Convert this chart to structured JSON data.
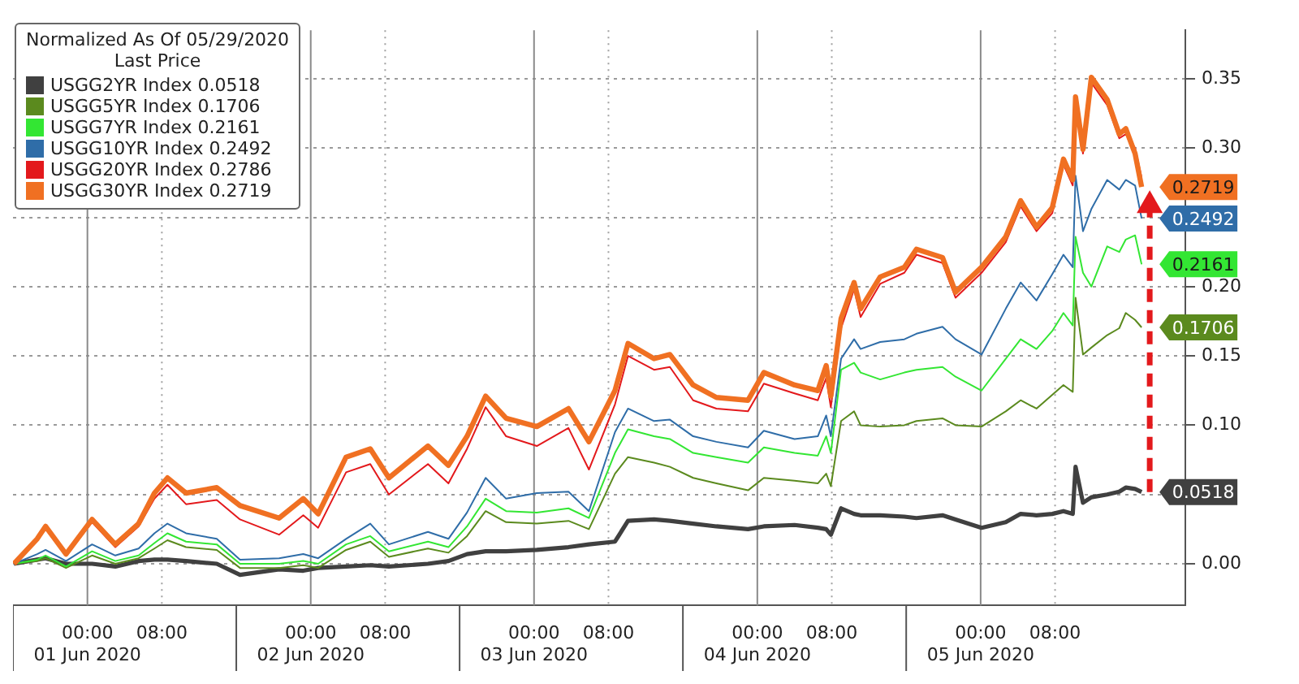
{
  "chart_data": {
    "type": "line",
    "legend_title": "Normalized As Of 05/29/2020\nLast Price",
    "x": [
      "2020-05-31T16:06",
      "2020-05-31T18:36",
      "2020-05-31T19:30",
      "2020-05-31T21:42",
      "2020-06-01T00:30",
      "2020-06-01T03:00",
      "2020-06-01T05:30",
      "2020-06-01T07:12",
      "2020-06-01T08:36",
      "2020-06-01T10:36",
      "2020-06-01T13:54",
      "2020-06-01T16:24",
      "2020-06-01T20:36",
      "2020-06-01T23:12",
      "2020-06-02T00:48",
      "2020-06-02T03:48",
      "2020-06-02T06:24",
      "2020-06-02T08:24",
      "2020-06-02T12:36",
      "2020-06-02T14:48",
      "2020-06-02T16:48",
      "2020-06-02T18:48",
      "2020-06-02T21:00",
      "2020-06-03T00:18",
      "2020-06-03T03:42",
      "2020-06-03T05:54",
      "2020-06-03T08:42",
      "2020-06-03T10:06",
      "2020-06-03T12:54",
      "2020-06-03T14:36",
      "2020-06-03T17:06",
      "2020-06-03T19:36",
      "2020-06-03T23:00",
      "2020-06-04T00:42",
      "2020-06-04T04:00",
      "2020-06-04T06:30",
      "2020-06-04T07:24",
      "2020-06-04T07:54",
      "2020-06-04T09:00",
      "2020-06-04T10:24",
      "2020-06-04T11:06",
      "2020-06-04T13:12",
      "2020-06-04T15:48",
      "2020-06-04T17:06",
      "2020-06-04T19:54",
      "2020-06-04T21:18",
      "2020-06-05T00:06",
      "2020-06-05T02:42",
      "2020-06-05T04:18",
      "2020-06-05T06:00",
      "2020-06-05T07:42",
      "2020-06-05T08:54",
      "2020-06-05T09:54",
      "2020-06-05T10:12",
      "2020-06-05T11:00",
      "2020-06-05T11:54",
      "2020-06-05T13:36",
      "2020-06-05T14:54",
      "2020-06-05T15:36",
      "2020-06-05T16:36",
      "2020-06-05T17:18"
    ],
    "series": [
      {
        "name": "USGG2YR Index 0.0518",
        "color": "#404040",
        "values": [
          0,
          0.003,
          0.004,
          0,
          0,
          -0.002,
          0.002,
          0.003,
          0.003,
          0.002,
          0,
          -0.008,
          -0.004,
          -0.005,
          -0.003,
          -0.002,
          -0.001,
          -0.002,
          0,
          0.002,
          0.007,
          0.009,
          0.009,
          0.01,
          0.012,
          0.014,
          0.016,
          0.031,
          0.032,
          0.031,
          0.029,
          0.027,
          0.025,
          0.027,
          0.028,
          0.026,
          0.025,
          0.021,
          0.04,
          0.036,
          0.035,
          0.035,
          0.034,
          0.033,
          0.035,
          0.032,
          0.026,
          0.03,
          0.036,
          0.035,
          0.036,
          0.038,
          0.036,
          0.07,
          0.044,
          0.048,
          0.05,
          0.052,
          0.055,
          0.054,
          0.0518
        ],
        "value_labels": [
          null,
          null,
          null,
          null,
          null,
          null,
          null,
          null,
          null,
          null,
          null,
          null,
          null,
          null,
          null,
          null,
          null,
          null,
          null,
          null,
          null,
          null,
          null,
          null,
          null,
          null,
          null,
          null,
          null,
          null,
          null,
          null,
          null,
          null,
          null,
          null,
          null,
          null,
          null,
          null,
          null,
          null,
          null,
          null,
          null,
          null,
          null,
          null,
          null,
          null,
          null,
          null,
          null,
          null,
          null,
          null,
          null,
          null,
          null,
          null,
          "0.0518"
        ]
      },
      {
        "name": "USGG5YR Index 0.1706",
        "color": "#5b8a1e",
        "values": [
          0,
          0.002,
          0.004,
          -0.003,
          0.006,
          0,
          0.004,
          0.011,
          0.017,
          0.012,
          0.01,
          -0.003,
          -0.003,
          -0.001,
          -0.003,
          0.01,
          0.016,
          0.005,
          0.011,
          0.008,
          0.02,
          0.038,
          0.03,
          0.029,
          0.031,
          0.025,
          0.065,
          0.077,
          0.073,
          0.07,
          0.062,
          0.058,
          0.053,
          0.062,
          0.06,
          0.058,
          0.065,
          0.056,
          0.103,
          0.11,
          0.1,
          0.099,
          0.1,
          0.103,
          0.105,
          0.1,
          0.099,
          0.11,
          0.118,
          0.112,
          0.122,
          0.129,
          0.124,
          0.192,
          0.151,
          0.156,
          0.165,
          0.17,
          0.181,
          0.176,
          0.1706
        ],
        "value_labels": [
          null,
          null,
          null,
          null,
          null,
          null,
          null,
          null,
          null,
          null,
          null,
          null,
          null,
          null,
          null,
          null,
          null,
          null,
          null,
          null,
          null,
          null,
          null,
          null,
          null,
          null,
          null,
          null,
          null,
          null,
          null,
          null,
          null,
          null,
          null,
          null,
          null,
          null,
          null,
          null,
          null,
          null,
          null,
          null,
          null,
          null,
          null,
          null,
          null,
          null,
          null,
          null,
          null,
          null,
          null,
          null,
          null,
          null,
          null,
          null,
          "0.1706"
        ]
      },
      {
        "name": "USGG7YR Index 0.2161",
        "color": "#33e633",
        "values": [
          0,
          0.003,
          0.006,
          -0.002,
          0.009,
          0.002,
          0.006,
          0.015,
          0.022,
          0.016,
          0.014,
          0,
          0,
          0.002,
          0,
          0.014,
          0.02,
          0.009,
          0.016,
          0.012,
          0.027,
          0.047,
          0.038,
          0.037,
          0.04,
          0.033,
          0.08,
          0.097,
          0.092,
          0.09,
          0.08,
          0.077,
          0.073,
          0.084,
          0.08,
          0.078,
          0.092,
          0.08,
          0.14,
          0.145,
          0.138,
          0.133,
          0.138,
          0.14,
          0.142,
          0.135,
          0.125,
          0.148,
          0.162,
          0.155,
          0.168,
          0.181,
          0.172,
          0.236,
          0.21,
          0.2,
          0.229,
          0.225,
          0.234,
          0.237,
          0.2161
        ],
        "value_labels": [
          null,
          null,
          null,
          null,
          null,
          null,
          null,
          null,
          null,
          null,
          null,
          null,
          null,
          null,
          null,
          null,
          null,
          null,
          null,
          null,
          null,
          null,
          null,
          null,
          null,
          null,
          null,
          null,
          null,
          null,
          null,
          null,
          null,
          null,
          null,
          null,
          null,
          null,
          null,
          null,
          null,
          null,
          null,
          null,
          null,
          null,
          null,
          null,
          null,
          null,
          null,
          null,
          null,
          null,
          null,
          null,
          null,
          null,
          null,
          null,
          "0.2161"
        ]
      },
      {
        "name": "USGG10YR Index 0.2492",
        "color": "#2f6da8",
        "values": [
          0,
          0.007,
          0.01,
          0.002,
          0.014,
          0.006,
          0.011,
          0.022,
          0.029,
          0.022,
          0.018,
          0.003,
          0.004,
          0.007,
          0.004,
          0.018,
          0.029,
          0.014,
          0.023,
          0.018,
          0.037,
          0.062,
          0.047,
          0.051,
          0.052,
          0.038,
          0.095,
          0.112,
          0.103,
          0.104,
          0.092,
          0.088,
          0.084,
          0.096,
          0.09,
          0.092,
          0.107,
          0.092,
          0.148,
          0.162,
          0.155,
          0.16,
          0.162,
          0.166,
          0.171,
          0.162,
          0.151,
          0.184,
          0.203,
          0.19,
          0.209,
          0.223,
          0.214,
          0.28,
          0.24,
          0.256,
          0.277,
          0.27,
          0.277,
          0.273,
          0.2492
        ],
        "value_labels": [
          null,
          null,
          null,
          null,
          null,
          null,
          null,
          null,
          null,
          null,
          null,
          null,
          null,
          null,
          null,
          null,
          null,
          null,
          null,
          null,
          null,
          null,
          null,
          null,
          null,
          null,
          null,
          null,
          null,
          null,
          null,
          null,
          null,
          null,
          null,
          null,
          null,
          null,
          null,
          null,
          null,
          null,
          null,
          null,
          null,
          null,
          null,
          null,
          null,
          null,
          null,
          null,
          null,
          null,
          null,
          null,
          null,
          null,
          null,
          null,
          "0.2492"
        ]
      },
      {
        "name": "USGG20YR Index 0.2786",
        "color": "#e3191c",
        "values": [
          0,
          0.017,
          0.025,
          0.006,
          0.03,
          0.012,
          0.027,
          0.047,
          0.057,
          0.043,
          0.046,
          0.032,
          0.021,
          0.035,
          0.026,
          0.066,
          0.072,
          0.05,
          0.072,
          0.058,
          0.083,
          0.113,
          0.092,
          0.085,
          0.098,
          0.068,
          0.115,
          0.15,
          0.14,
          0.142,
          0.118,
          0.112,
          0.11,
          0.13,
          0.123,
          0.118,
          0.134,
          0.113,
          0.17,
          0.198,
          0.178,
          0.202,
          0.21,
          0.223,
          0.217,
          0.192,
          0.21,
          0.232,
          0.258,
          0.24,
          0.253,
          0.288,
          0.273,
          0.333,
          0.296,
          0.347,
          0.331,
          0.307,
          0.31,
          0.3,
          0.2786
        ]
      },
      {
        "name": "USGG30YR Index 0.2719",
        "color": "#f07022",
        "values": [
          0,
          0.018,
          0.027,
          0.007,
          0.032,
          0.014,
          0.029,
          0.051,
          0.062,
          0.051,
          0.055,
          0.042,
          0.033,
          0.047,
          0.036,
          0.077,
          0.083,
          0.062,
          0.085,
          0.071,
          0.092,
          0.121,
          0.105,
          0.099,
          0.112,
          0.088,
          0.125,
          0.159,
          0.148,
          0.151,
          0.129,
          0.12,
          0.118,
          0.138,
          0.129,
          0.125,
          0.143,
          0.121,
          0.177,
          0.203,
          0.184,
          0.207,
          0.214,
          0.227,
          0.221,
          0.196,
          0.214,
          0.236,
          0.262,
          0.243,
          0.257,
          0.292,
          0.277,
          0.337,
          0.299,
          0.351,
          0.335,
          0.31,
          0.314,
          0.296,
          0.2719
        ],
        "value_labels": [
          null,
          null,
          null,
          null,
          null,
          null,
          null,
          null,
          null,
          null,
          null,
          null,
          null,
          null,
          null,
          null,
          null,
          null,
          null,
          null,
          null,
          null,
          null,
          null,
          null,
          null,
          null,
          null,
          null,
          null,
          null,
          null,
          null,
          null,
          null,
          null,
          null,
          null,
          null,
          null,
          null,
          null,
          null,
          null,
          null,
          null,
          null,
          null,
          null,
          null,
          null,
          null,
          null,
          null,
          null,
          null,
          null,
          null,
          null,
          null,
          "0.2719"
        ]
      }
    ],
    "xlim": [
      "2020-05-31T16:00",
      "2020-06-05T22:00"
    ],
    "xticks": [
      {
        "value": "2020-06-01T00:00",
        "label": "00:00\n01 Jun 2020"
      },
      {
        "value": "2020-06-01T08:00",
        "label": "08:00"
      },
      {
        "value": "2020-06-02T00:00",
        "label": "00:00\n02 Jun 2020"
      },
      {
        "value": "2020-06-02T08:00",
        "label": "08:00"
      },
      {
        "value": "2020-06-03T00:00",
        "label": "00:00\n03 Jun 2020"
      },
      {
        "value": "2020-06-03T08:00",
        "label": "08:00"
      },
      {
        "value": "2020-06-04T00:00",
        "label": "00:00\n04 Jun 2020"
      },
      {
        "value": "2020-06-04T08:00",
        "label": "08:00"
      },
      {
        "value": "2020-06-05T00:00",
        "label": "00:00\n05 Jun 2020"
      },
      {
        "value": "2020-06-05T08:00",
        "label": "08:00"
      }
    ],
    "ylim": [
      -0.03,
      0.385
    ],
    "yticks": [
      {
        "value": 0,
        "label": "0.00"
      },
      {
        "value": 0.05,
        "label": null
      },
      {
        "value": 0.1,
        "label": "0.10"
      },
      {
        "value": 0.15,
        "label": "0.15"
      },
      {
        "value": 0.2,
        "label": "0.20"
      },
      {
        "value": 0.25,
        "label": null
      },
      {
        "value": 0.3,
        "label": "0.30"
      },
      {
        "value": 0.35,
        "label": "0.35"
      }
    ],
    "grid": true,
    "legend": "top left",
    "line_style": "solid",
    "marker": "none"
  }
}
